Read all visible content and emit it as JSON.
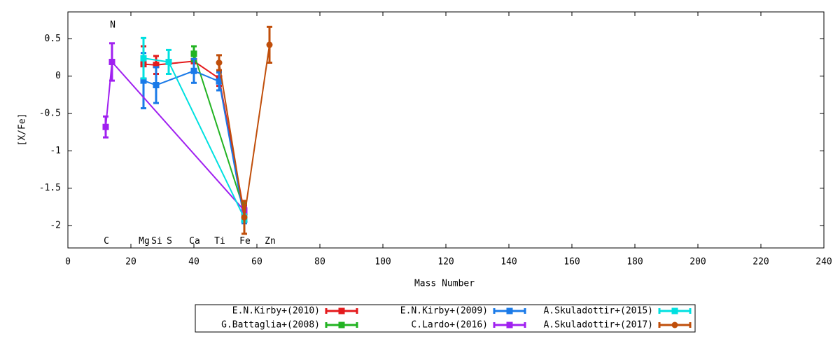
{
  "chart_data": {
    "type": "errorline",
    "xlabel": "Mass Number",
    "ylabel": "[X/Fe]",
    "xlim": [
      0,
      240
    ],
    "ylim": [
      -2.3,
      0.86
    ],
    "xticks": [
      0,
      20,
      40,
      60,
      80,
      100,
      120,
      140,
      160,
      180,
      200,
      220,
      240
    ],
    "yticks": [
      0.5,
      0,
      -0.5,
      -1,
      -1.5,
      -2
    ],
    "annotations": [
      {
        "text": "N",
        "x": 14,
        "y": 0.68
      },
      {
        "text": "C",
        "x": 12,
        "y": -2.21
      },
      {
        "text": "Mg",
        "x": 24,
        "y": -2.21
      },
      {
        "text": "Si",
        "x": 28,
        "y": -2.21
      },
      {
        "text": "S",
        "x": 32,
        "y": -2.21
      },
      {
        "text": "Ca",
        "x": 40,
        "y": -2.21
      },
      {
        "text": "Ti",
        "x": 48,
        "y": -2.21
      },
      {
        "text": "Fe",
        "x": 56,
        "y": -2.21
      },
      {
        "text": "Zn",
        "x": 64,
        "y": -2.21
      }
    ],
    "series": [
      {
        "name": "E.N.Kirby+(2010)",
        "color": "#e41a1c",
        "marker": "square",
        "x": [
          24,
          28,
          40,
          48,
          56
        ],
        "values": [
          0.16,
          0.15,
          0.2,
          -0.03,
          -1.83
        ],
        "errors": [
          0.24,
          0.12,
          0.12,
          0.1,
          0.1
        ]
      },
      {
        "name": "G.Battaglia+(2008)",
        "color": "#22b322",
        "marker": "square",
        "x": [
          40,
          56
        ],
        "values": [
          0.3,
          -1.8
        ],
        "errors": [
          0.1,
          0.1
        ]
      },
      {
        "name": "E.N.Kirby+(2009)",
        "color": "#1a7ae8",
        "marker": "square",
        "x": [
          24,
          28,
          40,
          48,
          56
        ],
        "values": [
          -0.06,
          -0.12,
          0.07,
          -0.07,
          -1.92
        ],
        "errors": [
          0.37,
          0.24,
          0.16,
          0.12,
          0.05
        ]
      },
      {
        "name": "C.Lardo+(2016)",
        "color": "#a020f0",
        "marker": "square",
        "x": [
          12,
          14,
          56
        ],
        "values": [
          -0.68,
          0.19,
          -1.8
        ],
        "errors": [
          0.14,
          0.25,
          0.05
        ]
      },
      {
        "name": "A.Skuladottir+(2015)",
        "color": "#00e0e0",
        "marker": "square",
        "x": [
          24,
          32,
          56
        ],
        "values": [
          0.24,
          0.19,
          -1.9
        ],
        "errors": [
          0.27,
          0.16,
          0.05
        ]
      },
      {
        "name": "A.Skuladottir+(2017)",
        "color": "#c04e0a",
        "marker": "circle",
        "x": [
          48,
          56,
          64
        ],
        "values": [
          0.18,
          -1.89,
          0.42
        ],
        "errors": [
          0.1,
          0.22,
          0.24
        ]
      }
    ]
  }
}
